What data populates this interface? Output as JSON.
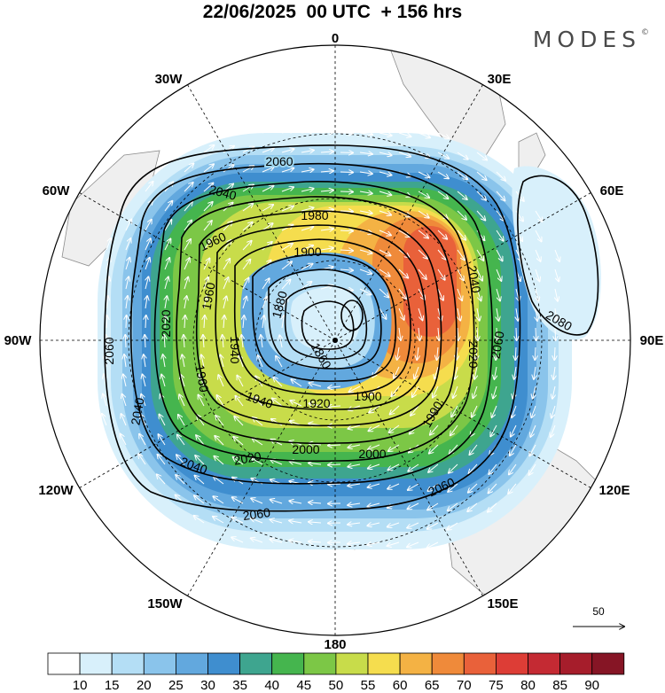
{
  "title": "22/06/2025  00 UTC  + 156 hrs",
  "brand": "MODES",
  "brand_mark": "©",
  "map": {
    "projection": "south-polar-stereographic",
    "longitude_labels": [
      {
        "lon": 0,
        "text": "0"
      },
      {
        "lon": 30,
        "text": "30E"
      },
      {
        "lon": 60,
        "text": "60E"
      },
      {
        "lon": 90,
        "text": "90E"
      },
      {
        "lon": 120,
        "text": "120E"
      },
      {
        "lon": 150,
        "text": "150E"
      },
      {
        "lon": 180,
        "text": "180"
      },
      {
        "lon": -150,
        "text": "150W"
      },
      {
        "lon": -120,
        "text": "120W"
      },
      {
        "lon": -90,
        "text": "90W"
      },
      {
        "lon": -60,
        "text": "60W"
      },
      {
        "lon": -30,
        "text": "30W"
      }
    ],
    "contour_labels": [
      "2060",
      "2040",
      "1980",
      "1960",
      "1900",
      "1880",
      "1860",
      "1920",
      "1940",
      "2000",
      "2020",
      "2080",
      "1990"
    ],
    "wind_reference_label": "50",
    "colors": {
      "land": "#efefef",
      "coast": "#8c8c8c",
      "grid": "#000000",
      "contour": "#000000",
      "arrow": "#ffffff"
    }
  },
  "colorbar": {
    "labels": [
      "10",
      "15",
      "20",
      "25",
      "30",
      "35",
      "40",
      "45",
      "50",
      "55",
      "60",
      "65",
      "70",
      "75",
      "80",
      "85",
      "90"
    ],
    "colors": [
      "#ffffff",
      "#d8f0fb",
      "#b4def5",
      "#8ac4eb",
      "#62a8de",
      "#3f8ecf",
      "#3ea58f",
      "#45b54e",
      "#7cc746",
      "#c8dc4a",
      "#f5dd4e",
      "#f4b244",
      "#ef8a3a",
      "#e9613a",
      "#dd3d36",
      "#c42a33",
      "#a61d2b",
      "#861525"
    ]
  }
}
